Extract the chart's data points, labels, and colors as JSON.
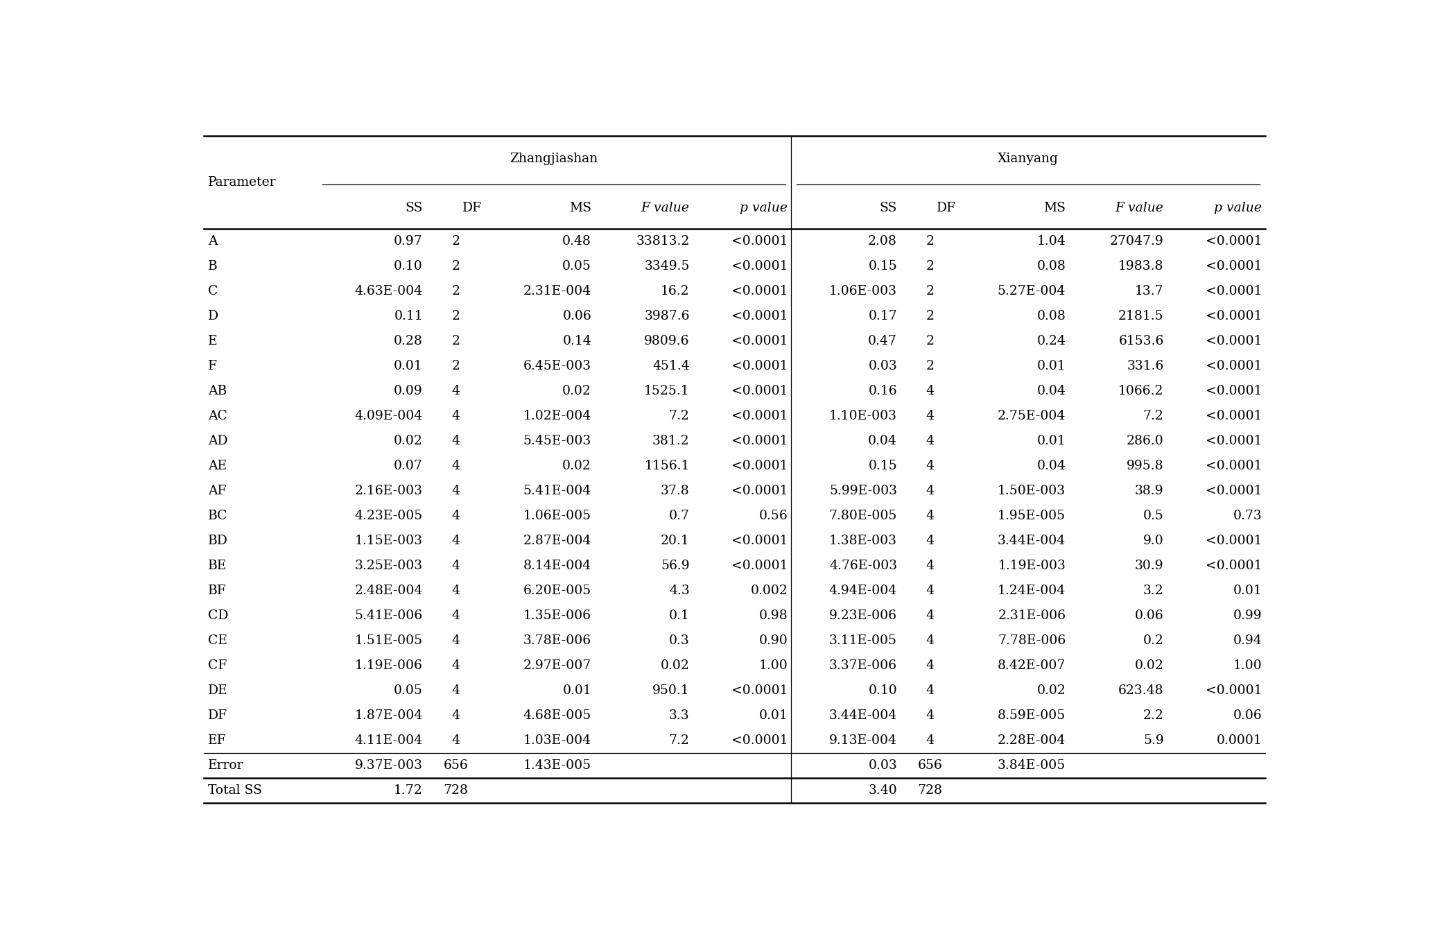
{
  "title_zh": "Zhangjiashan",
  "title_xy": "Xianyang",
  "rows": [
    [
      "A",
      "0.97",
      "2",
      "0.48",
      "33813.2",
      "<0.0001",
      "2.08",
      "2",
      "1.04",
      "27047.9",
      "<0.0001"
    ],
    [
      "B",
      "0.10",
      "2",
      "0.05",
      "3349.5",
      "<0.0001",
      "0.15",
      "2",
      "0.08",
      "1983.8",
      "<0.0001"
    ],
    [
      "C",
      "4.63E-004",
      "2",
      "2.31E-004",
      "16.2",
      "<0.0001",
      "1.06E-003",
      "2",
      "5.27E-004",
      "13.7",
      "<0.0001"
    ],
    [
      "D",
      "0.11",
      "2",
      "0.06",
      "3987.6",
      "<0.0001",
      "0.17",
      "2",
      "0.08",
      "2181.5",
      "<0.0001"
    ],
    [
      "E",
      "0.28",
      "2",
      "0.14",
      "9809.6",
      "<0.0001",
      "0.47",
      "2",
      "0.24",
      "6153.6",
      "<0.0001"
    ],
    [
      "F",
      "0.01",
      "2",
      "6.45E-003",
      "451.4",
      "<0.0001",
      "0.03",
      "2",
      "0.01",
      "331.6",
      "<0.0001"
    ],
    [
      "AB",
      "0.09",
      "4",
      "0.02",
      "1525.1",
      "<0.0001",
      "0.16",
      "4",
      "0.04",
      "1066.2",
      "<0.0001"
    ],
    [
      "AC",
      "4.09E-004",
      "4",
      "1.02E-004",
      "7.2",
      "<0.0001",
      "1.10E-003",
      "4",
      "2.75E-004",
      "7.2",
      "<0.0001"
    ],
    [
      "AD",
      "0.02",
      "4",
      "5.45E-003",
      "381.2",
      "<0.0001",
      "0.04",
      "4",
      "0.01",
      "286.0",
      "<0.0001"
    ],
    [
      "AE",
      "0.07",
      "4",
      "0.02",
      "1156.1",
      "<0.0001",
      "0.15",
      "4",
      "0.04",
      "995.8",
      "<0.0001"
    ],
    [
      "AF",
      "2.16E-003",
      "4",
      "5.41E-004",
      "37.8",
      "<0.0001",
      "5.99E-003",
      "4",
      "1.50E-003",
      "38.9",
      "<0.0001"
    ],
    [
      "BC",
      "4.23E-005",
      "4",
      "1.06E-005",
      "0.7",
      "0.56",
      "7.80E-005",
      "4",
      "1.95E-005",
      "0.5",
      "0.73"
    ],
    [
      "BD",
      "1.15E-003",
      "4",
      "2.87E-004",
      "20.1",
      "<0.0001",
      "1.38E-003",
      "4",
      "3.44E-004",
      "9.0",
      "<0.0001"
    ],
    [
      "BE",
      "3.25E-003",
      "4",
      "8.14E-004",
      "56.9",
      "<0.0001",
      "4.76E-003",
      "4",
      "1.19E-003",
      "30.9",
      "<0.0001"
    ],
    [
      "BF",
      "2.48E-004",
      "4",
      "6.20E-005",
      "4.3",
      "0.002",
      "4.94E-004",
      "4",
      "1.24E-004",
      "3.2",
      "0.01"
    ],
    [
      "CD",
      "5.41E-006",
      "4",
      "1.35E-006",
      "0.1",
      "0.98",
      "9.23E-006",
      "4",
      "2.31E-006",
      "0.06",
      "0.99"
    ],
    [
      "CE",
      "1.51E-005",
      "4",
      "3.78E-006",
      "0.3",
      "0.90",
      "3.11E-005",
      "4",
      "7.78E-006",
      "0.2",
      "0.94"
    ],
    [
      "CF",
      "1.19E-006",
      "4",
      "2.97E-007",
      "0.02",
      "1.00",
      "3.37E-006",
      "4",
      "8.42E-007",
      "0.02",
      "1.00"
    ],
    [
      "DE",
      "0.05",
      "4",
      "0.01",
      "950.1",
      "<0.0001",
      "0.10",
      "4",
      "0.02",
      "623.48",
      "<0.0001"
    ],
    [
      "DF",
      "1.87E-004",
      "4",
      "4.68E-005",
      "3.3",
      "0.01",
      "3.44E-004",
      "4",
      "8.59E-005",
      "2.2",
      "0.06"
    ],
    [
      "EF",
      "4.11E-004",
      "4",
      "1.03E-004",
      "7.2",
      "<0.0001",
      "9.13E-004",
      "4",
      "2.28E-004",
      "5.9",
      "0.0001"
    ],
    [
      "Error",
      "9.37E-003",
      "656",
      "1.43E-005",
      "",
      "",
      "0.03",
      "656",
      "3.84E-005",
      "",
      ""
    ],
    [
      "Total SS",
      "1.72",
      "728",
      "",
      "",
      "",
      "3.40",
      "728",
      "",
      "",
      ""
    ]
  ],
  "bg_color": "#ffffff",
  "text_color": "#000000",
  "font_size": 13.5,
  "lw_thick": 1.8,
  "lw_thin": 0.9
}
